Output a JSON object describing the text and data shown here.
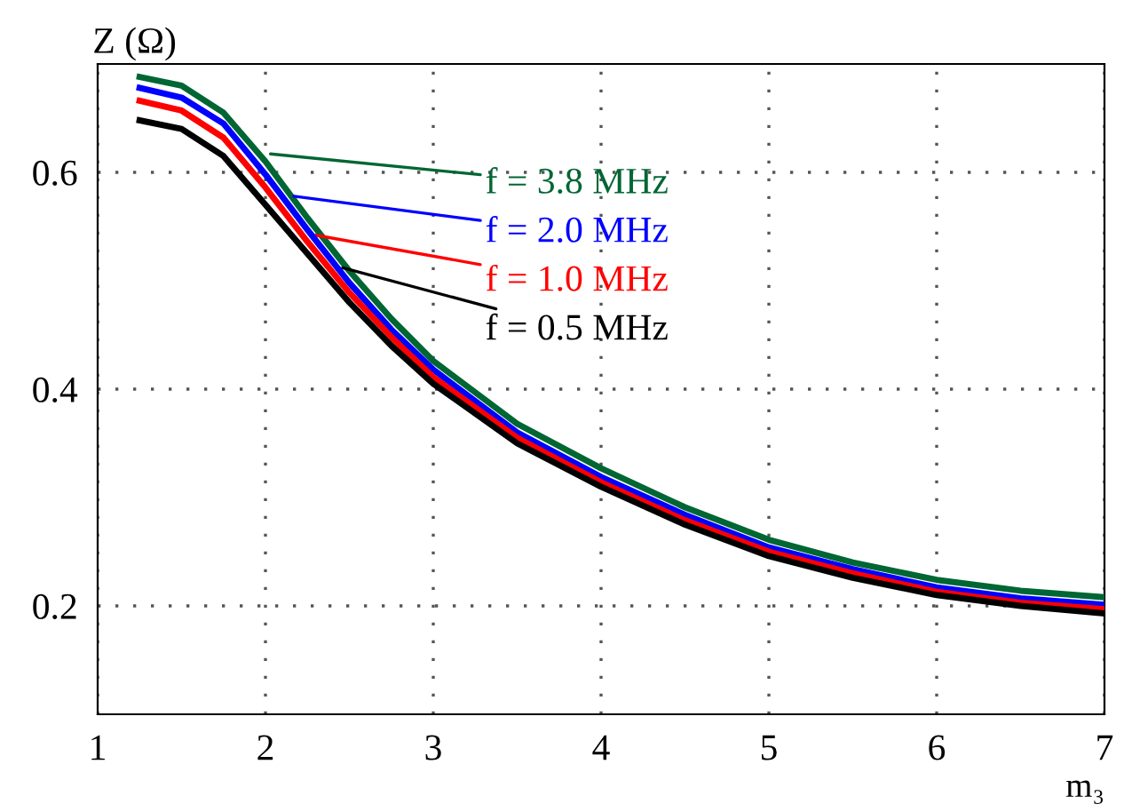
{
  "chart_data": {
    "type": "line",
    "xlabel": "m₃",
    "ylabel": "Z (Ω)",
    "x": [
      1.25,
      1.5,
      1.75,
      2,
      2.25,
      2.5,
      2.75,
      3,
      3.5,
      4,
      4.5,
      5,
      5.5,
      6,
      6.5,
      7
    ],
    "series": [
      {
        "color": "#006633",
        "values": [
          0.688,
          0.68,
          0.655,
          0.61,
          0.558,
          0.509,
          0.465,
          0.426,
          0.368,
          0.327,
          0.291,
          0.261,
          0.24,
          0.224,
          0.214,
          0.208
        ]
      },
      {
        "color": "#0000ff",
        "values": [
          0.678,
          0.669,
          0.645,
          0.598,
          0.547,
          0.498,
          0.455,
          0.418,
          0.36,
          0.319,
          0.284,
          0.254,
          0.234,
          0.217,
          0.207,
          0.201
        ]
      },
      {
        "color": "#ff0000",
        "values": [
          0.666,
          0.657,
          0.632,
          0.586,
          0.536,
          0.489,
          0.448,
          0.411,
          0.355,
          0.314,
          0.279,
          0.25,
          0.23,
          0.213,
          0.203,
          0.197
        ]
      },
      {
        "color": "#000000",
        "values": [
          0.648,
          0.64,
          0.615,
          0.57,
          0.525,
          0.48,
          0.44,
          0.405,
          0.35,
          0.31,
          0.275,
          0.246,
          0.226,
          0.21,
          0.2,
          0.193
        ]
      }
    ],
    "annotations": [
      {
        "text": "f = 3.8 MHz",
        "x": 2.03,
        "y": 0.617
      },
      {
        "text": "f = 2.0 MHz",
        "x": 2.17,
        "y": 0.578
      },
      {
        "text": "f = 1.0 MHz",
        "x": 2.3,
        "y": 0.542
      },
      {
        "text": "f = 0.5 MHz",
        "x": 2.46,
        "y": 0.512
      }
    ],
    "xlim": [
      1,
      7
    ],
    "ylim": [
      0.1,
      0.7
    ],
    "xticks": [
      1,
      2,
      3,
      4,
      5,
      6,
      7
    ],
    "yticks": [
      0.2,
      0.4,
      0.6
    ],
    "grid": true,
    "line_style": "solid"
  }
}
